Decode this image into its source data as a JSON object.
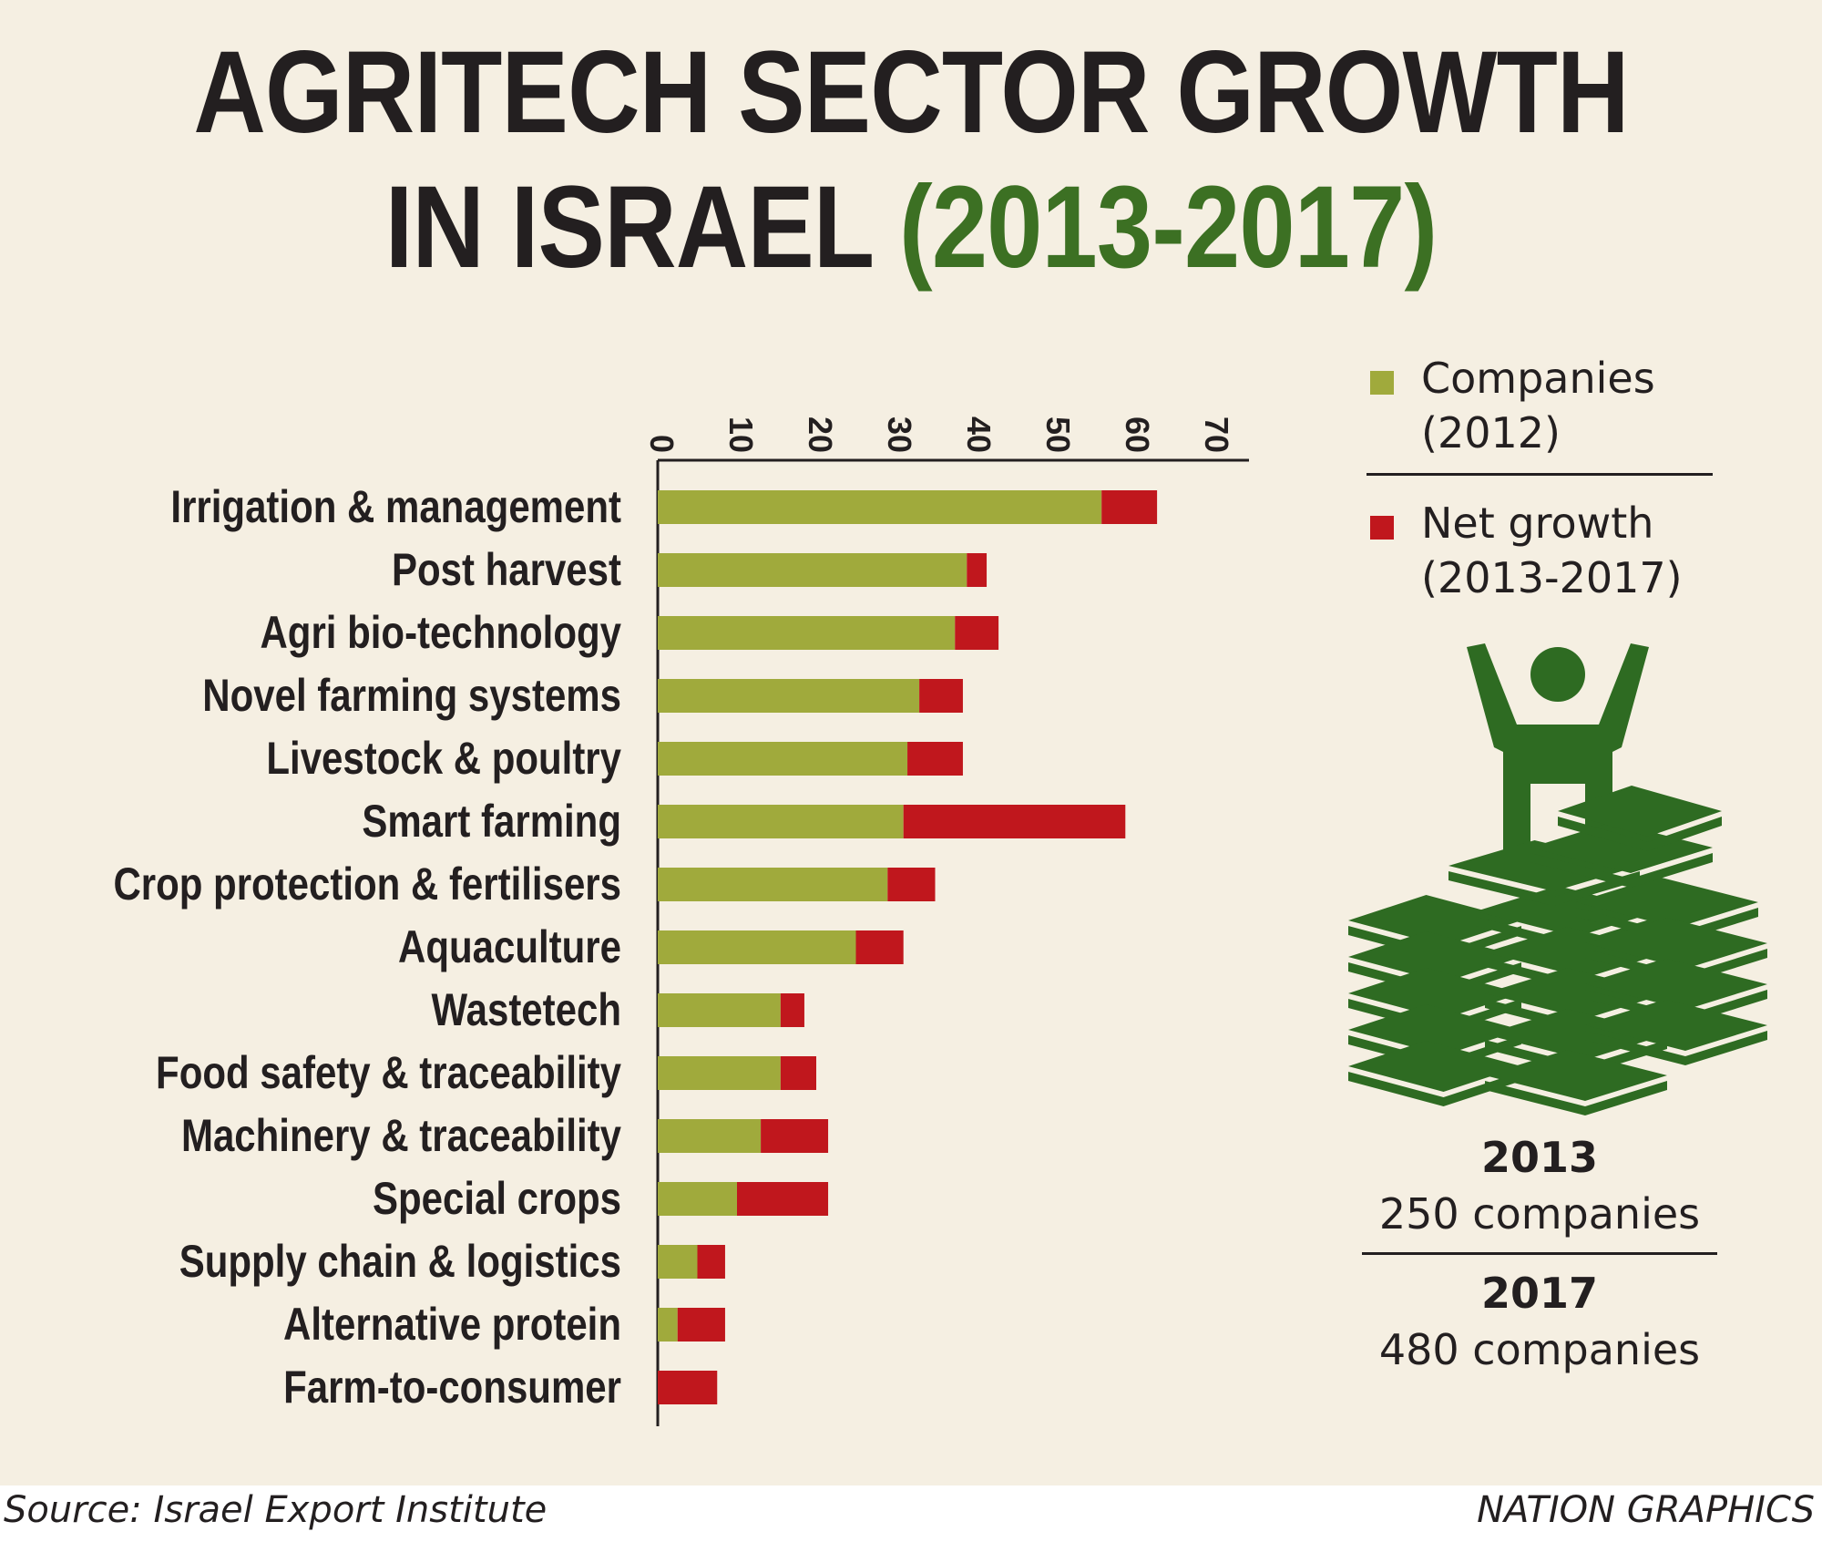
{
  "header": {
    "title_line1": "AGRITECH SECTOR GROWTH",
    "title_line2": "IN ISRAEL",
    "title_accent": "(2013-2017)"
  },
  "colors": {
    "companies": "#a0aa3c",
    "net_growth": "#c0171d",
    "accent_green": "#3c7023",
    "icon_green": "#2e6b22",
    "background": "#f5efe2"
  },
  "legend": {
    "companies_line1": "Companies",
    "companies_line2": "(2012)",
    "growth_line1": "Net growth",
    "growth_line2": "(2013-2017)"
  },
  "totals": {
    "year_a": "2013",
    "count_a": "250 companies",
    "year_b": "2017",
    "count_b": "480 companies"
  },
  "icon": "person-on-money-stack-icon",
  "footer": {
    "source": "Source: Israel Export Institute",
    "credit": "NATION GRAPHICS"
  },
  "chart_data": {
    "type": "bar",
    "orientation": "horizontal",
    "stacked": true,
    "categories": [
      "Irrigation & management",
      "Post harvest",
      "Agri bio-technology",
      "Novel farming systems",
      "Livestock & poultry",
      "Smart farming",
      "Crop protection & fertilisers",
      "Aquaculture",
      "Wastetech",
      "Food safety & traceability",
      "Machinery & traceability",
      "Special crops",
      "Supply chain & logistics",
      "Alternative protein",
      "Farm-to-consumer"
    ],
    "series": [
      {
        "name": "Companies (2012)",
        "values": [
          56,
          39,
          37.5,
          33,
          31.5,
          31,
          29,
          25,
          15.5,
          15.5,
          13,
          10,
          5,
          2.5,
          0
        ]
      },
      {
        "name": "Net growth (2013-2017)",
        "values": [
          7,
          2.5,
          5.5,
          5.5,
          7,
          28,
          6,
          6,
          3,
          4.5,
          8.5,
          11.5,
          3.5,
          6,
          7.5
        ]
      }
    ],
    "xticks": [
      0,
      10,
      20,
      30,
      40,
      50,
      60,
      70
    ],
    "xlim": [
      0,
      70
    ],
    "axis_position": "top",
    "grid": false,
    "legend_position": "right"
  }
}
